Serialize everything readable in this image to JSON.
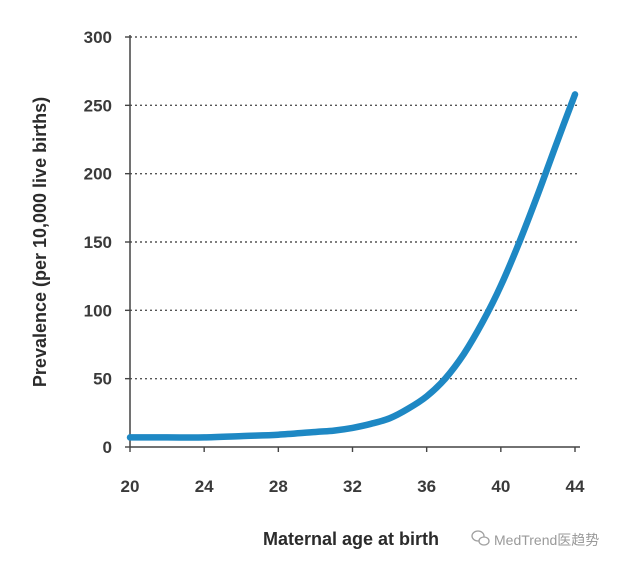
{
  "chart_data": {
    "type": "line",
    "title": "",
    "xlabel": "Maternal age at birth",
    "ylabel": "Prevalence (per 10,000 live births)",
    "xlim": [
      20,
      44
    ],
    "ylim": [
      0,
      300
    ],
    "xticks": [
      20,
      24,
      28,
      32,
      36,
      40,
      44
    ],
    "yticks": [
      0,
      50,
      100,
      150,
      200,
      250,
      300
    ],
    "grid": "horizontal dotted",
    "series": [
      {
        "color": "#1e88c4",
        "x": [
          20,
          22,
          24,
          26,
          28,
          30,
          31,
          32,
          33,
          34,
          35,
          36,
          37,
          38,
          39,
          40,
          41,
          42,
          43,
          44
        ],
        "y": [
          7,
          7,
          7,
          8,
          9,
          11,
          12,
          14,
          17,
          21,
          28,
          37,
          50,
          68,
          91,
          118,
          150,
          185,
          222,
          258
        ]
      }
    ]
  },
  "watermark": {
    "text": "MedTrend医趋势",
    "icon": "wechat-icon"
  }
}
